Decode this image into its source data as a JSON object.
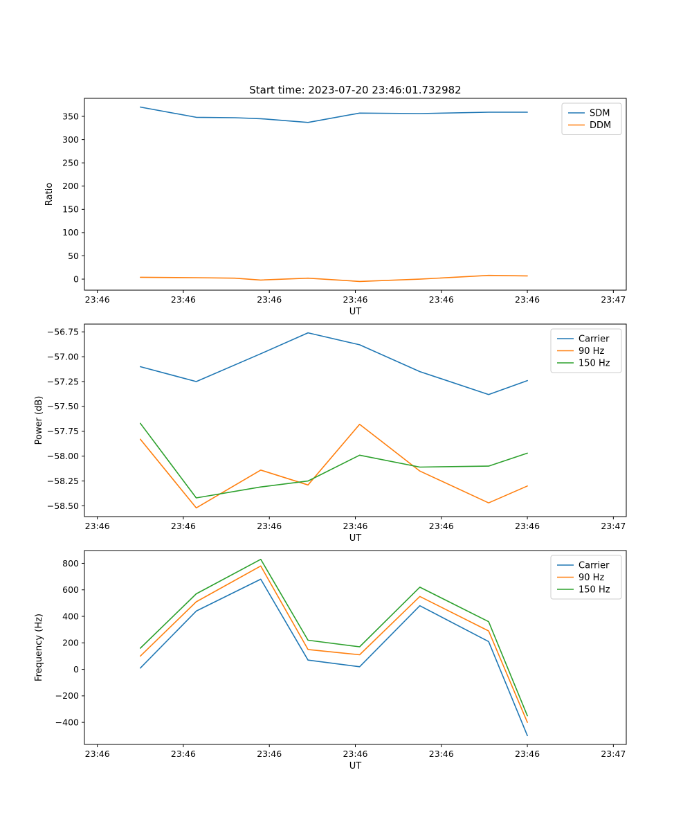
{
  "figure": {
    "title": "Start time: 2023-07-20 23:46:01.732982",
    "background": "#ffffff"
  },
  "palette": {
    "blue": "#1f77b4",
    "orange": "#ff7f0e",
    "green": "#2ca02c",
    "axis": "#000000",
    "legend_border": "#cccccc"
  },
  "chart_data": [
    {
      "type": "line",
      "title": "",
      "xlabel": "UT",
      "ylabel": "Ratio",
      "xlim": [
        -1.5,
        61.5
      ],
      "ylim": [
        -23.75,
        388.75
      ],
      "xticks": [
        0,
        10,
        20,
        30,
        40,
        50,
        60
      ],
      "xtick_labels": [
        "23:46",
        "23:46",
        "23:46",
        "23:46",
        "23:46",
        "23:46",
        "23:47"
      ],
      "yticks": [
        0,
        50,
        100,
        150,
        200,
        250,
        300,
        350
      ],
      "ytick_labels": [
        "0",
        "50",
        "100",
        "150",
        "200",
        "250",
        "300",
        "350"
      ],
      "grid": false,
      "legend_position": "upper right",
      "x": [
        5,
        11.5,
        16,
        19,
        24.5,
        30.5,
        37.5,
        45.5,
        50
      ],
      "series": [
        {
          "name": "SDM",
          "color": "#1f77b4",
          "values": [
            370,
            348,
            347,
            345,
            337,
            357,
            356,
            359,
            359
          ]
        },
        {
          "name": "DDM",
          "color": "#ff7f0e",
          "values": [
            4,
            3,
            2,
            -2,
            2,
            -5,
            0,
            8,
            7
          ]
        }
      ]
    },
    {
      "type": "line",
      "title": "",
      "xlabel": "UT",
      "ylabel": "Power (dB)",
      "xlim": [
        -1.5,
        61.5
      ],
      "ylim": [
        -58.608,
        -56.672
      ],
      "xticks": [
        0,
        10,
        20,
        30,
        40,
        50,
        60
      ],
      "xtick_labels": [
        "23:46",
        "23:46",
        "23:46",
        "23:46",
        "23:46",
        "23:46",
        "23:47"
      ],
      "yticks": [
        -58.5,
        -58.25,
        -58.0,
        -57.75,
        -57.5,
        -57.25,
        -57.0,
        -56.75
      ],
      "ytick_labels": [
        "−58.50",
        "−58.25",
        "−58.00",
        "−57.75",
        "−57.50",
        "−57.25",
        "−57.00",
        "−56.75"
      ],
      "grid": false,
      "legend_position": "upper right",
      "x": [
        5,
        11.5,
        19,
        24.5,
        30.5,
        37.5,
        45.5,
        50
      ],
      "series": [
        {
          "name": "Carrier",
          "color": "#1f77b4",
          "values": [
            -57.1,
            -57.25,
            -56.97,
            -56.76,
            -56.88,
            -57.15,
            -57.38,
            -57.24
          ]
        },
        {
          "name": "90 Hz",
          "color": "#ff7f0e",
          "values": [
            -57.83,
            -58.52,
            -58.14,
            -58.29,
            -57.68,
            -58.15,
            -58.47,
            -58.3
          ]
        },
        {
          "name": "150 Hz",
          "color": "#2ca02c",
          "values": [
            -57.67,
            -58.42,
            -58.31,
            -58.25,
            -57.99,
            -58.11,
            -58.1,
            -57.97
          ]
        }
      ]
    },
    {
      "type": "line",
      "title": "",
      "xlabel": "UT",
      "ylabel": "Frequency (Hz)",
      "xlim": [
        -1.5,
        61.5
      ],
      "ylim": [
        -566.5,
        896.5
      ],
      "xticks": [
        0,
        10,
        20,
        30,
        40,
        50,
        60
      ],
      "xtick_labels": [
        "23:46",
        "23:46",
        "23:46",
        "23:46",
        "23:46",
        "23:46",
        "23:47"
      ],
      "yticks": [
        -400,
        -200,
        0,
        200,
        400,
        600,
        800
      ],
      "ytick_labels": [
        "−400",
        "−200",
        "0",
        "200",
        "400",
        "600",
        "800"
      ],
      "grid": false,
      "legend_position": "upper right",
      "x": [
        5,
        11.5,
        19,
        24.5,
        30.5,
        37.5,
        45.5,
        50
      ],
      "series": [
        {
          "name": "Carrier",
          "color": "#1f77b4",
          "values": [
            10,
            440,
            680,
            70,
            20,
            480,
            210,
            -500
          ]
        },
        {
          "name": "90 Hz",
          "color": "#ff7f0e",
          "values": [
            100,
            510,
            780,
            150,
            110,
            550,
            290,
            -400
          ]
        },
        {
          "name": "150 Hz",
          "color": "#2ca02c",
          "values": [
            160,
            570,
            830,
            220,
            170,
            620,
            360,
            -350
          ]
        }
      ]
    }
  ]
}
